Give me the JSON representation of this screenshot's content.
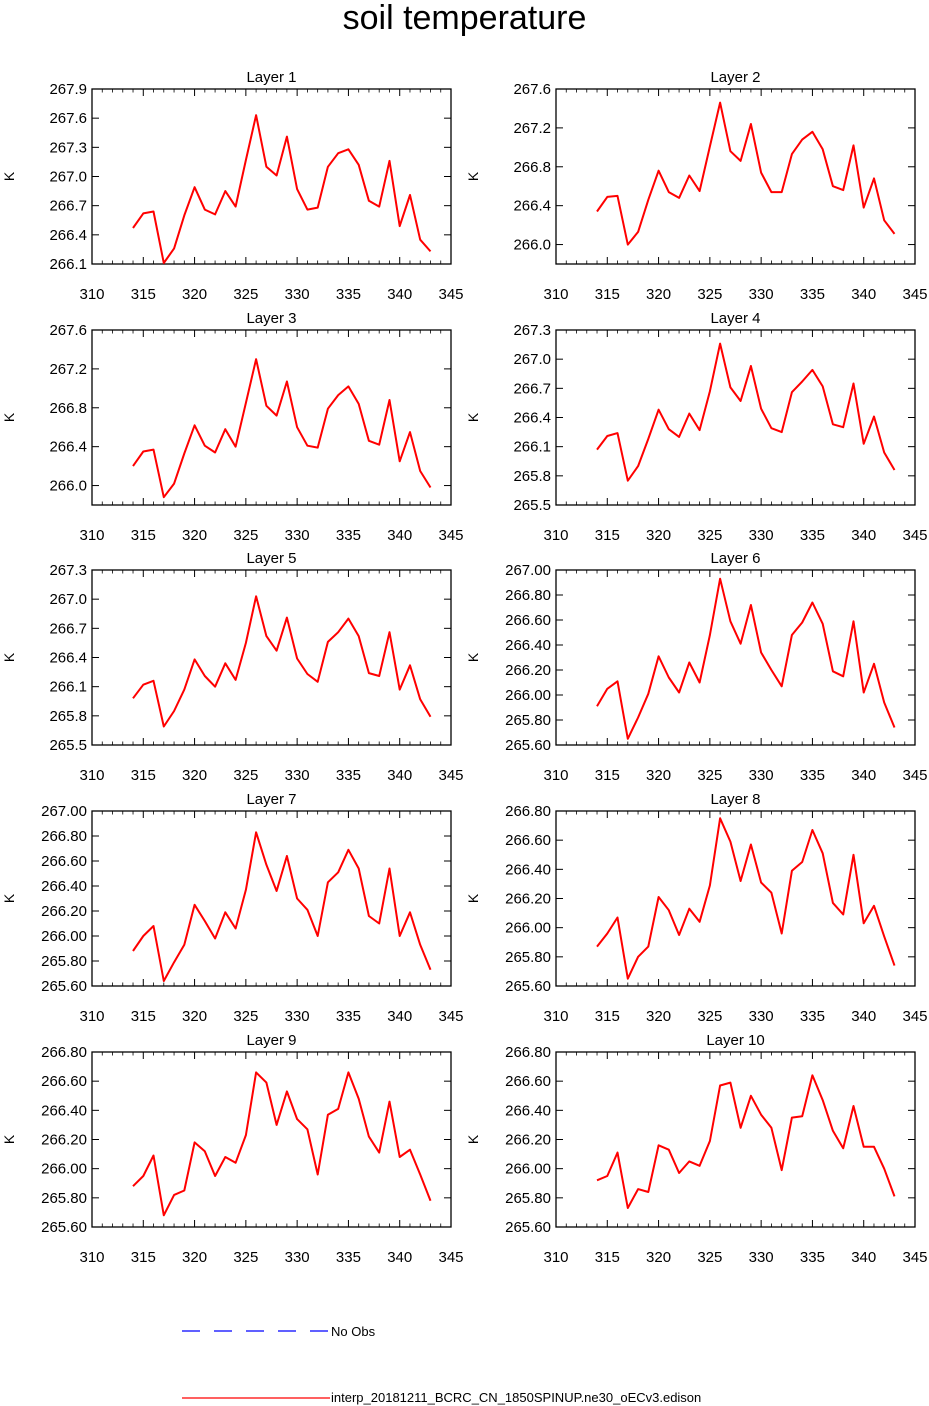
{
  "title": "soil temperature",
  "legend": {
    "items": [
      {
        "label": "No Obs",
        "color": "#0000ff",
        "style": "dashed"
      },
      {
        "label": "interp_20181211_BCRC_CN_1850SPINUP.ne30_oECv3.edison",
        "color": "#ff0000",
        "style": "solid"
      }
    ]
  },
  "chart_data": [
    {
      "type": "line",
      "title": "Layer 1",
      "xlabel": "",
      "ylabel": "K",
      "xlim": [
        310,
        345
      ],
      "ylim": [
        266.1,
        267.9
      ],
      "xticks": [
        "310",
        "315",
        "320",
        "325",
        "330",
        "335",
        "340",
        "345"
      ],
      "yticks": [
        "266.1",
        "266.4",
        "266.7",
        "267.0",
        "267.3",
        "267.6",
        "267.9"
      ],
      "series": [
        {
          "name": "interp_20181211_BCRC_CN_1850SPINUP.ne30_oECv3.edison",
          "color": "#ff0000",
          "x": [
            314,
            315,
            316,
            317,
            318,
            319,
            320,
            321,
            322,
            323,
            324,
            325,
            326,
            327,
            328,
            329,
            330,
            331,
            332,
            333,
            334,
            335,
            336,
            337,
            338,
            339,
            340,
            341,
            342,
            343
          ],
          "y": [
            266.47,
            266.62,
            266.64,
            266.11,
            266.26,
            266.6,
            266.89,
            266.66,
            266.61,
            266.85,
            266.69,
            267.17,
            267.63,
            267.1,
            267.01,
            267.41,
            266.87,
            266.66,
            266.68,
            267.1,
            267.24,
            267.28,
            267.12,
            266.75,
            266.69,
            267.16,
            266.49,
            266.81,
            266.35,
            266.23
          ]
        }
      ]
    },
    {
      "type": "line",
      "title": "Layer 2",
      "xlabel": "",
      "ylabel": "K",
      "xlim": [
        310,
        345
      ],
      "ylim": [
        265.8,
        267.6
      ],
      "xticks": [
        "310",
        "315",
        "320",
        "325",
        "330",
        "335",
        "340",
        "345"
      ],
      "yticks": [
        "266.0",
        "266.4",
        "266.8",
        "267.2",
        "267.6"
      ],
      "series": [
        {
          "name": "interp_20181211_BCRC_CN_1850SPINUP.ne30_oECv3.edison",
          "color": "#ff0000",
          "x": [
            314,
            315,
            316,
            317,
            318,
            319,
            320,
            321,
            322,
            323,
            324,
            325,
            326,
            327,
            328,
            329,
            330,
            331,
            332,
            333,
            334,
            335,
            336,
            337,
            338,
            339,
            340,
            341,
            342,
            343
          ],
          "y": [
            266.34,
            266.49,
            266.5,
            266.0,
            266.13,
            266.46,
            266.76,
            266.54,
            266.48,
            266.71,
            266.55,
            267.01,
            267.46,
            266.96,
            266.86,
            267.24,
            266.74,
            266.54,
            266.54,
            266.93,
            267.08,
            267.16,
            266.98,
            266.6,
            266.56,
            267.02,
            266.38,
            266.68,
            266.25,
            266.11
          ]
        }
      ]
    },
    {
      "type": "line",
      "title": "Layer 3",
      "xlabel": "",
      "ylabel": "K",
      "xlim": [
        310,
        345
      ],
      "ylim": [
        265.8,
        267.6
      ],
      "xticks": [
        "310",
        "315",
        "320",
        "325",
        "330",
        "335",
        "340",
        "345"
      ],
      "yticks": [
        "266.0",
        "266.4",
        "266.8",
        "267.2",
        "267.6"
      ],
      "series": [
        {
          "name": "interp_20181211_BCRC_CN_1850SPINUP.ne30_oECv3.edison",
          "color": "#ff0000",
          "x": [
            314,
            315,
            316,
            317,
            318,
            319,
            320,
            321,
            322,
            323,
            324,
            325,
            326,
            327,
            328,
            329,
            330,
            331,
            332,
            333,
            334,
            335,
            336,
            337,
            338,
            339,
            340,
            341,
            342,
            343
          ],
          "y": [
            266.2,
            266.35,
            266.37,
            265.88,
            266.02,
            266.33,
            266.62,
            266.41,
            266.34,
            266.58,
            266.4,
            266.85,
            267.3,
            266.82,
            266.72,
            267.07,
            266.6,
            266.41,
            266.39,
            266.79,
            266.93,
            267.02,
            266.84,
            266.46,
            266.42,
            266.88,
            266.25,
            266.55,
            266.15,
            265.98
          ]
        }
      ]
    },
    {
      "type": "line",
      "title": "Layer 4",
      "xlabel": "",
      "ylabel": "K",
      "xlim": [
        310,
        345
      ],
      "ylim": [
        265.5,
        267.3
      ],
      "xticks": [
        "310",
        "315",
        "320",
        "325",
        "330",
        "335",
        "340",
        "345"
      ],
      "yticks": [
        "265.5",
        "265.8",
        "266.1",
        "266.4",
        "266.7",
        "267.0",
        "267.3"
      ],
      "series": [
        {
          "name": "interp_20181211_BCRC_CN_1850SPINUP.ne30_oECv3.edison",
          "color": "#ff0000",
          "x": [
            314,
            315,
            316,
            317,
            318,
            319,
            320,
            321,
            322,
            323,
            324,
            325,
            326,
            327,
            328,
            329,
            330,
            331,
            332,
            333,
            334,
            335,
            336,
            337,
            338,
            339,
            340,
            341,
            342,
            343
          ],
          "y": [
            266.07,
            266.21,
            266.24,
            265.75,
            265.9,
            266.18,
            266.48,
            266.28,
            266.2,
            266.44,
            266.27,
            266.67,
            267.16,
            266.71,
            266.57,
            266.93,
            266.49,
            266.29,
            266.25,
            266.66,
            266.77,
            266.89,
            266.72,
            266.33,
            266.3,
            266.75,
            266.13,
            266.41,
            266.04,
            265.86
          ]
        }
      ]
    },
    {
      "type": "line",
      "title": "Layer 5",
      "xlabel": "",
      "ylabel": "K",
      "xlim": [
        310,
        345
      ],
      "ylim": [
        265.5,
        267.3
      ],
      "xticks": [
        "310",
        "315",
        "320",
        "325",
        "330",
        "335",
        "340",
        "345"
      ],
      "yticks": [
        "265.5",
        "265.8",
        "266.1",
        "266.4",
        "266.7",
        "267.0",
        "267.3"
      ],
      "series": [
        {
          "name": "interp_20181211_BCRC_CN_1850SPINUP.ne30_oECv3.edison",
          "color": "#ff0000",
          "x": [
            314,
            315,
            316,
            317,
            318,
            319,
            320,
            321,
            322,
            323,
            324,
            325,
            326,
            327,
            328,
            329,
            330,
            331,
            332,
            333,
            334,
            335,
            336,
            337,
            338,
            339,
            340,
            341,
            342,
            343
          ],
          "y": [
            265.98,
            266.12,
            266.16,
            265.69,
            265.85,
            266.07,
            266.38,
            266.21,
            266.1,
            266.34,
            266.17,
            266.55,
            267.03,
            266.62,
            266.47,
            266.81,
            266.39,
            266.23,
            266.15,
            266.56,
            266.66,
            266.8,
            266.62,
            266.24,
            266.21,
            266.66,
            266.07,
            266.32,
            265.97,
            265.79
          ]
        }
      ]
    },
    {
      "type": "line",
      "title": "Layer 6",
      "xlabel": "",
      "ylabel": "K",
      "xlim": [
        310,
        345
      ],
      "ylim": [
        265.6,
        267.0
      ],
      "xticks": [
        "310",
        "315",
        "320",
        "325",
        "330",
        "335",
        "340",
        "345"
      ],
      "yticks": [
        "265.60",
        "265.80",
        "266.00",
        "266.20",
        "266.40",
        "266.60",
        "266.80",
        "267.00"
      ],
      "series": [
        {
          "name": "interp_20181211_BCRC_CN_1850SPINUP.ne30_oECv3.edison",
          "color": "#ff0000",
          "x": [
            314,
            315,
            316,
            317,
            318,
            319,
            320,
            321,
            322,
            323,
            324,
            325,
            326,
            327,
            328,
            329,
            330,
            331,
            332,
            333,
            334,
            335,
            336,
            337,
            338,
            339,
            340,
            341,
            342,
            343
          ],
          "y": [
            265.91,
            266.05,
            266.11,
            265.65,
            265.82,
            266.01,
            266.31,
            266.14,
            266.02,
            266.26,
            266.1,
            266.48,
            266.93,
            266.59,
            266.41,
            266.72,
            266.34,
            266.2,
            266.07,
            266.48,
            266.58,
            266.74,
            266.57,
            266.19,
            266.15,
            266.59,
            266.02,
            266.25,
            265.94,
            265.74
          ]
        }
      ]
    },
    {
      "type": "line",
      "title": "Layer 7",
      "xlabel": "",
      "ylabel": "K",
      "xlim": [
        310,
        345
      ],
      "ylim": [
        265.6,
        267.0
      ],
      "xticks": [
        "310",
        "315",
        "320",
        "325",
        "330",
        "335",
        "340",
        "345"
      ],
      "yticks": [
        "265.60",
        "265.80",
        "266.00",
        "266.20",
        "266.40",
        "266.60",
        "266.80",
        "267.00"
      ],
      "series": [
        {
          "name": "interp_20181211_BCRC_CN_1850SPINUP.ne30_oECv3.edison",
          "color": "#ff0000",
          "x": [
            314,
            315,
            316,
            317,
            318,
            319,
            320,
            321,
            322,
            323,
            324,
            325,
            326,
            327,
            328,
            329,
            330,
            331,
            332,
            333,
            334,
            335,
            336,
            337,
            338,
            339,
            340,
            341,
            342,
            343
          ],
          "y": [
            265.88,
            266.0,
            266.08,
            265.64,
            265.79,
            265.93,
            266.25,
            266.12,
            265.98,
            266.19,
            266.06,
            266.37,
            266.83,
            266.57,
            266.36,
            266.64,
            266.3,
            266.21,
            266.0,
            266.43,
            266.51,
            266.69,
            266.54,
            266.16,
            266.1,
            266.54,
            266.0,
            266.19,
            265.93,
            265.73
          ]
        }
      ]
    },
    {
      "type": "line",
      "title": "Layer 8",
      "xlabel": "",
      "ylabel": "K",
      "xlim": [
        310,
        345
      ],
      "ylim": [
        265.6,
        266.8
      ],
      "xticks": [
        "310",
        "315",
        "320",
        "325",
        "330",
        "335",
        "340",
        "345"
      ],
      "yticks": [
        "265.60",
        "265.80",
        "266.00",
        "266.20",
        "266.40",
        "266.60",
        "266.80"
      ],
      "series": [
        {
          "name": "interp_20181211_BCRC_CN_1850SPINUP.ne30_oECv3.edison",
          "color": "#ff0000",
          "x": [
            314,
            315,
            316,
            317,
            318,
            319,
            320,
            321,
            322,
            323,
            324,
            325,
            326,
            327,
            328,
            329,
            330,
            331,
            332,
            333,
            334,
            335,
            336,
            337,
            338,
            339,
            340,
            341,
            342,
            343
          ],
          "y": [
            265.87,
            265.96,
            266.07,
            265.65,
            265.8,
            265.87,
            266.21,
            266.12,
            265.95,
            266.13,
            266.04,
            266.29,
            266.75,
            266.59,
            266.32,
            266.57,
            266.31,
            266.24,
            265.96,
            266.39,
            266.45,
            266.67,
            266.51,
            266.17,
            266.09,
            266.5,
            266.03,
            266.15,
            265.94,
            265.74
          ]
        }
      ]
    },
    {
      "type": "line",
      "title": "Layer 9",
      "xlabel": "",
      "ylabel": "K",
      "xlim": [
        310,
        345
      ],
      "ylim": [
        265.6,
        266.8
      ],
      "xticks": [
        "310",
        "315",
        "320",
        "325",
        "330",
        "335",
        "340",
        "345"
      ],
      "yticks": [
        "265.60",
        "265.80",
        "266.00",
        "266.20",
        "266.40",
        "266.60",
        "266.80"
      ],
      "series": [
        {
          "name": "interp_20181211_BCRC_CN_1850SPINUP.ne30_oECv3.edison",
          "color": "#ff0000",
          "x": [
            314,
            315,
            316,
            317,
            318,
            319,
            320,
            321,
            322,
            323,
            324,
            325,
            326,
            327,
            328,
            329,
            330,
            331,
            332,
            333,
            334,
            335,
            336,
            337,
            338,
            339,
            340,
            341,
            342,
            343
          ],
          "y": [
            265.88,
            265.95,
            266.09,
            265.68,
            265.82,
            265.85,
            266.18,
            266.12,
            265.95,
            266.08,
            266.04,
            266.23,
            266.66,
            266.59,
            266.3,
            266.53,
            266.34,
            266.27,
            265.96,
            266.37,
            266.41,
            266.66,
            266.48,
            266.22,
            266.11,
            266.46,
            266.08,
            266.13,
            265.96,
            265.78
          ]
        }
      ]
    },
    {
      "type": "line",
      "title": "Layer 10",
      "xlabel": "",
      "ylabel": "K",
      "xlim": [
        310,
        345
      ],
      "ylim": [
        265.6,
        266.8
      ],
      "xticks": [
        "310",
        "315",
        "320",
        "325",
        "330",
        "335",
        "340",
        "345"
      ],
      "yticks": [
        "265.60",
        "265.80",
        "266.00",
        "266.20",
        "266.40",
        "266.60",
        "266.80"
      ],
      "series": [
        {
          "name": "interp_20181211_BCRC_CN_1850SPINUP.ne30_oECv3.edison",
          "color": "#ff0000",
          "x": [
            314,
            315,
            316,
            317,
            318,
            319,
            320,
            321,
            322,
            323,
            324,
            325,
            326,
            327,
            328,
            329,
            330,
            331,
            332,
            333,
            334,
            335,
            336,
            337,
            338,
            339,
            340,
            341,
            342,
            343
          ],
          "y": [
            265.92,
            265.95,
            266.11,
            265.73,
            265.86,
            265.84,
            266.16,
            266.13,
            265.97,
            266.05,
            266.02,
            266.19,
            266.57,
            266.59,
            266.28,
            266.5,
            266.37,
            266.28,
            265.99,
            266.35,
            266.36,
            266.64,
            266.47,
            266.26,
            266.14,
            266.43,
            266.15,
            266.15,
            266.0,
            265.81
          ]
        }
      ]
    }
  ]
}
